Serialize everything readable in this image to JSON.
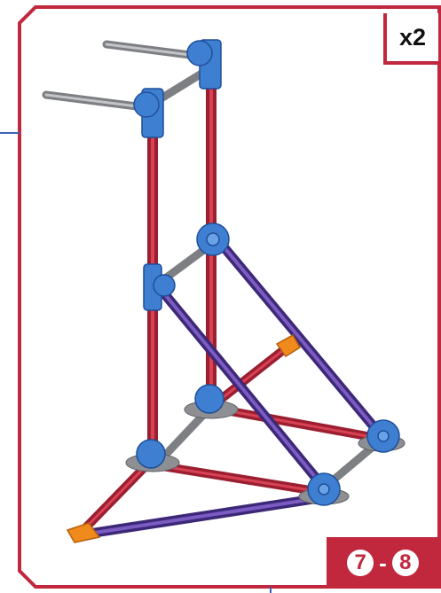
{
  "quantity_label": "x2",
  "steps": {
    "from": "7",
    "separator": "-",
    "to": "8"
  },
  "colors": {
    "frame_border": "#c1273d",
    "red_rod": "#c1273d",
    "purple_rod": "#5b3fa0",
    "gray_rod": "#8d8f93",
    "blue_connector": "#3f7fd2",
    "orange_connector": "#f08a1c"
  }
}
